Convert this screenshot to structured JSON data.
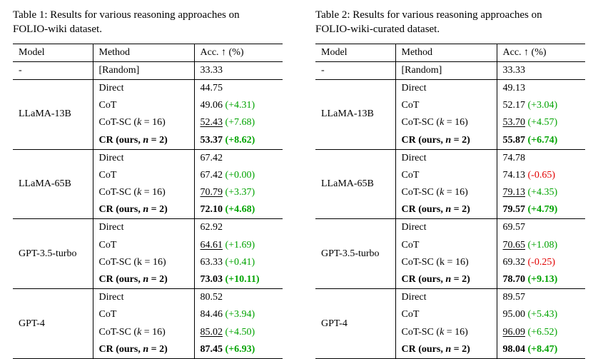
{
  "colors": {
    "positive": "#00a300",
    "negative": "#e10000",
    "text": "#000000",
    "background": "#ffffff"
  },
  "tables": [
    {
      "caption": "Table 1: Results for various reasoning approaches on FOLIO-wiki dataset.",
      "columns": [
        "Model",
        "Method",
        "Acc. ↑ (%)"
      ],
      "random_row": {
        "model": "-",
        "method": "[Random]",
        "acc": "33.33"
      },
      "groups": [
        {
          "model": "LLaMA-13B",
          "rows": [
            {
              "method": "Direct",
              "acc": "44.75"
            },
            {
              "method": "CoT",
              "acc": "49.06",
              "delta": "+4.31"
            },
            {
              "method": "CoT-SC (k = 16)",
              "acc": "52.43",
              "delta": "+7.68",
              "underline": true
            },
            {
              "method": "CR (ours, n = 2)",
              "acc": "53.37",
              "delta": "+8.62",
              "bold": true
            }
          ]
        },
        {
          "model": "LLaMA-65B",
          "rows": [
            {
              "method": "Direct",
              "acc": "67.42"
            },
            {
              "method": "CoT",
              "acc": "67.42",
              "delta": "+0.00"
            },
            {
              "method": "CoT-SC (k = 16)",
              "acc": "70.79",
              "delta": "+3.37",
              "underline": true
            },
            {
              "method": "CR (ours, n = 2)",
              "acc": "72.10",
              "delta": "+4.68",
              "bold": true
            }
          ]
        },
        {
          "model": "GPT-3.5-turbo",
          "rows": [
            {
              "method": "Direct",
              "acc": "62.92"
            },
            {
              "method": "CoT",
              "acc": "64.61",
              "delta": "+1.69",
              "underline": true
            },
            {
              "method": "CoT-SC (k = 16)",
              "acc": "63.33",
              "delta": "+0.41",
              "upright_var": true
            },
            {
              "method": "CR (ours, n = 2)",
              "acc": "73.03",
              "delta": "+10.11",
              "bold": true
            }
          ]
        },
        {
          "model": "GPT-4",
          "rows": [
            {
              "method": "Direct",
              "acc": "80.52"
            },
            {
              "method": "CoT",
              "acc": "84.46",
              "delta": "+3.94"
            },
            {
              "method": "CoT-SC (k = 16)",
              "acc": "85.02",
              "delta": "+4.50",
              "underline": true
            },
            {
              "method": "CR (ours, n = 2)",
              "acc": "87.45",
              "delta": "+6.93",
              "bold": true
            }
          ]
        }
      ]
    },
    {
      "caption": "Table 2: Results for various reasoning approaches on FOLIO-wiki-curated dataset.",
      "columns": [
        "Model",
        "Method",
        "Acc. ↑ (%)"
      ],
      "random_row": {
        "model": "-",
        "method": "[Random]",
        "acc": "33.33"
      },
      "groups": [
        {
          "model": "LLaMA-13B",
          "rows": [
            {
              "method": "Direct",
              "acc": "49.13"
            },
            {
              "method": "CoT",
              "acc": "52.17",
              "delta": "+3.04"
            },
            {
              "method": "CoT-SC (k = 16)",
              "acc": "53.70",
              "delta": "+4.57",
              "underline": true
            },
            {
              "method": "CR (ours, n = 2)",
              "acc": "55.87",
              "delta": "+6.74",
              "bold": true
            }
          ]
        },
        {
          "model": "LLaMA-65B",
          "rows": [
            {
              "method": "Direct",
              "acc": "74.78"
            },
            {
              "method": "CoT",
              "acc": "74.13",
              "delta": "-0.65"
            },
            {
              "method": "CoT-SC (k = 16)",
              "acc": "79.13",
              "delta": "+4.35",
              "underline": true
            },
            {
              "method": "CR (ours, n = 2)",
              "acc": "79.57",
              "delta": "+4.79",
              "bold": true
            }
          ]
        },
        {
          "model": "GPT-3.5-turbo",
          "rows": [
            {
              "method": "Direct",
              "acc": "69.57"
            },
            {
              "method": "CoT",
              "acc": "70.65",
              "delta": "+1.08",
              "underline": true
            },
            {
              "method": "CoT-SC (k = 16)",
              "acc": "69.32",
              "delta": "-0.25",
              "upright_var": true
            },
            {
              "method": "CR (ours, n = 2)",
              "acc": "78.70",
              "delta": "+9.13",
              "bold": true
            }
          ]
        },
        {
          "model": "GPT-4",
          "rows": [
            {
              "method": "Direct",
              "acc": "89.57"
            },
            {
              "method": "CoT",
              "acc": "95.00",
              "delta": "+5.43"
            },
            {
              "method": "CoT-SC (k = 16)",
              "acc": "96.09",
              "delta": "+6.52",
              "underline": true
            },
            {
              "method": "CR (ours, n = 2)",
              "acc": "98.04",
              "delta": "+8.47",
              "bold": true
            }
          ]
        }
      ]
    }
  ]
}
